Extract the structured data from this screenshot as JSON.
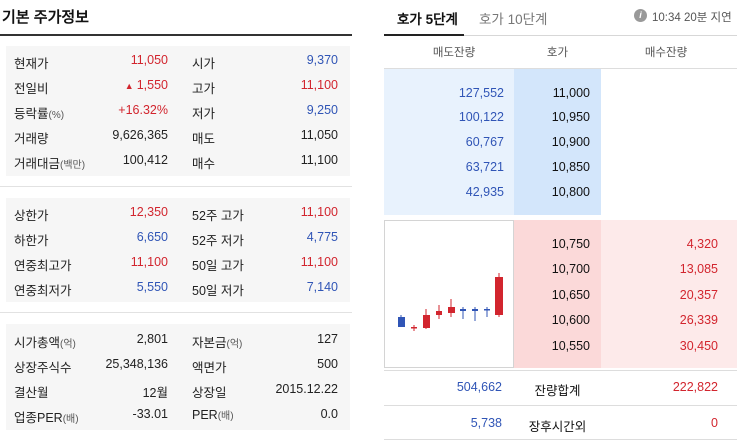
{
  "left": {
    "title": "기본 주가정보",
    "section1": [
      {
        "label": "현재가",
        "unit": "",
        "value": "11,050",
        "value_color": "red",
        "arrow": "",
        "label2": "시가",
        "unit2": "",
        "value2": "9,370",
        "value2_color": "blue"
      },
      {
        "label": "전일비",
        "unit": "",
        "value": "1,550",
        "value_color": "red",
        "arrow": "▲",
        "label2": "고가",
        "unit2": "",
        "value2": "11,100",
        "value2_color": "red"
      },
      {
        "label": "등락률",
        "unit": "(%)",
        "value": "+16.32%",
        "value_color": "red",
        "arrow": "",
        "label2": "저가",
        "unit2": "",
        "value2": "9,250",
        "value2_color": "blue"
      },
      {
        "label": "거래량",
        "unit": "",
        "value": "9,626,365",
        "value_color": "dark",
        "arrow": "",
        "label2": "매도",
        "unit2": "",
        "value2": "11,050",
        "value2_color": "dark"
      },
      {
        "label": "거래대금",
        "unit": "(백만)",
        "value": "100,412",
        "value_color": "dark",
        "arrow": "",
        "label2": "매수",
        "unit2": "",
        "value2": "11,100",
        "value2_color": "dark"
      }
    ],
    "section2": [
      {
        "label": "상한가",
        "value": "12,350",
        "value_color": "red",
        "label2": "52주 고가",
        "value2": "11,100",
        "value2_color": "red"
      },
      {
        "label": "하한가",
        "value": "6,650",
        "value_color": "blue",
        "label2": "52주 저가",
        "value2": "4,775",
        "value2_color": "blue"
      },
      {
        "label": "연중최고가",
        "value": "11,100",
        "value_color": "red",
        "label2": "50일 고가",
        "value2": "11,100",
        "value2_color": "red"
      },
      {
        "label": "연중최저가",
        "value": "5,550",
        "value_color": "blue",
        "label2": "50일 저가",
        "value2": "7,140",
        "value2_color": "blue"
      }
    ],
    "section3": [
      {
        "label": "시가총액",
        "unit": "(억)",
        "value": "2,801",
        "label2": "자본금",
        "unit2": "(억)",
        "value2": "127"
      },
      {
        "label": "상장주식수",
        "unit": "",
        "value": "25,348,136",
        "label2": "액면가",
        "unit2": "",
        "value2": "500"
      },
      {
        "label": "결산월",
        "unit": "",
        "value": "12월",
        "label2": "상장일",
        "unit2": "",
        "value2": "2015.12.22"
      },
      {
        "label": "업종PER",
        "unit": "(배)",
        "value": "-33.01",
        "label2": "PER",
        "unit2": "(배)",
        "value2": "0.0"
      }
    ]
  },
  "right": {
    "tab_active": "호가 5단계",
    "tab_inactive": "호가 10단계",
    "info_icon": "i",
    "time_note": "10:34 20분 지연",
    "col_ask": "매도잔량",
    "col_price": "호가",
    "col_bid": "매수잔량",
    "asks": [
      {
        "vol": "127,552",
        "price": "11,000"
      },
      {
        "vol": "100,122",
        "price": "10,950"
      },
      {
        "vol": "60,767",
        "price": "10,900"
      },
      {
        "vol": "63,721",
        "price": "10,850"
      },
      {
        "vol": "42,935",
        "price": "10,800"
      }
    ],
    "bids": [
      {
        "price": "10,750",
        "vol": "4,320"
      },
      {
        "price": "10,700",
        "vol": "13,085"
      },
      {
        "price": "10,650",
        "vol": "20,357"
      },
      {
        "price": "10,600",
        "vol": "26,339"
      },
      {
        "price": "10,550",
        "vol": "30,450"
      }
    ],
    "total_label": "잔량합계",
    "total_ask": "504,662",
    "total_bid": "222,822",
    "after_label": "장후시간외",
    "after_ask": "5,738",
    "after_bid": "0"
  },
  "colors": {
    "up": "#d2252e",
    "down": "#3055b6",
    "ask_bg": "#e8f2fd",
    "bid_bg": "#fdeaea"
  }
}
